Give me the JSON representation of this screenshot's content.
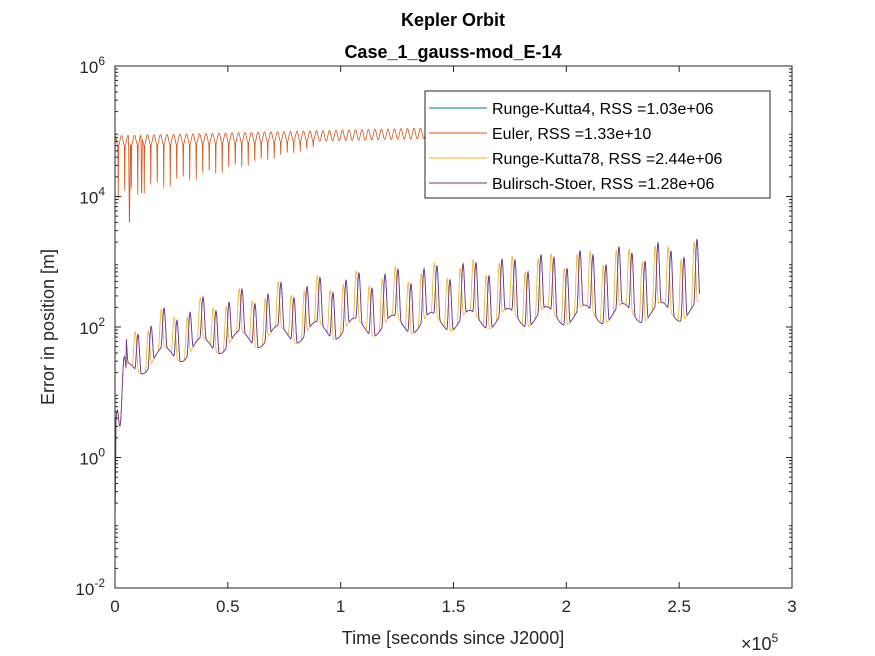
{
  "chart_data": {
    "type": "line",
    "title": "Kepler Orbit",
    "subtitle": "Case_1_gauss-mod_E-14",
    "xlabel": "Time [seconds since J2000]",
    "ylabel": "Error in position [m]",
    "x_multiplier_base": "10",
    "x_multiplier_exp": "5",
    "xlim": [
      0,
      3
    ],
    "ylim_log10": [
      -2,
      6
    ],
    "yscale": "log",
    "grid": false,
    "legend_position": "top-right",
    "x_ticks": [
      {
        "value": 0,
        "label": "0"
      },
      {
        "value": 0.5,
        "label": "0.5"
      },
      {
        "value": 1,
        "label": "1"
      },
      {
        "value": 1.5,
        "label": "1.5"
      },
      {
        "value": 2,
        "label": "2"
      },
      {
        "value": 2.5,
        "label": "2.5"
      },
      {
        "value": 3,
        "label": "3"
      }
    ],
    "y_ticks": [
      {
        "exp": -2,
        "base": "10",
        "sup": "-2"
      },
      {
        "exp": 0,
        "base": "10",
        "sup": "0"
      },
      {
        "exp": 2,
        "base": "10",
        "sup": "2"
      },
      {
        "exp": 4,
        "base": "10",
        "sup": "4"
      },
      {
        "exp": 6,
        "base": "10",
        "sup": "6"
      }
    ],
    "series": [
      {
        "name": "Runge-Kutta4, RSS =1.03e+06",
        "color": "#0072BD",
        "model": "low",
        "phase": 0.0
      },
      {
        "name": "Euler, RSS =1.33e+10",
        "color": "#D95319",
        "model": "high",
        "phase": 0.0
      },
      {
        "name": "Runge-Kutta78, RSS =2.44e+06",
        "color": "#EDB120",
        "model": "low",
        "phase": 0.012
      },
      {
        "name": "Bulirsch-Stoer, RSS =1.28e+06",
        "color": "#7E2F8E",
        "model": "low",
        "phase": 0.0
      }
    ],
    "x_end": 2.59,
    "period": 0.0576
  }
}
